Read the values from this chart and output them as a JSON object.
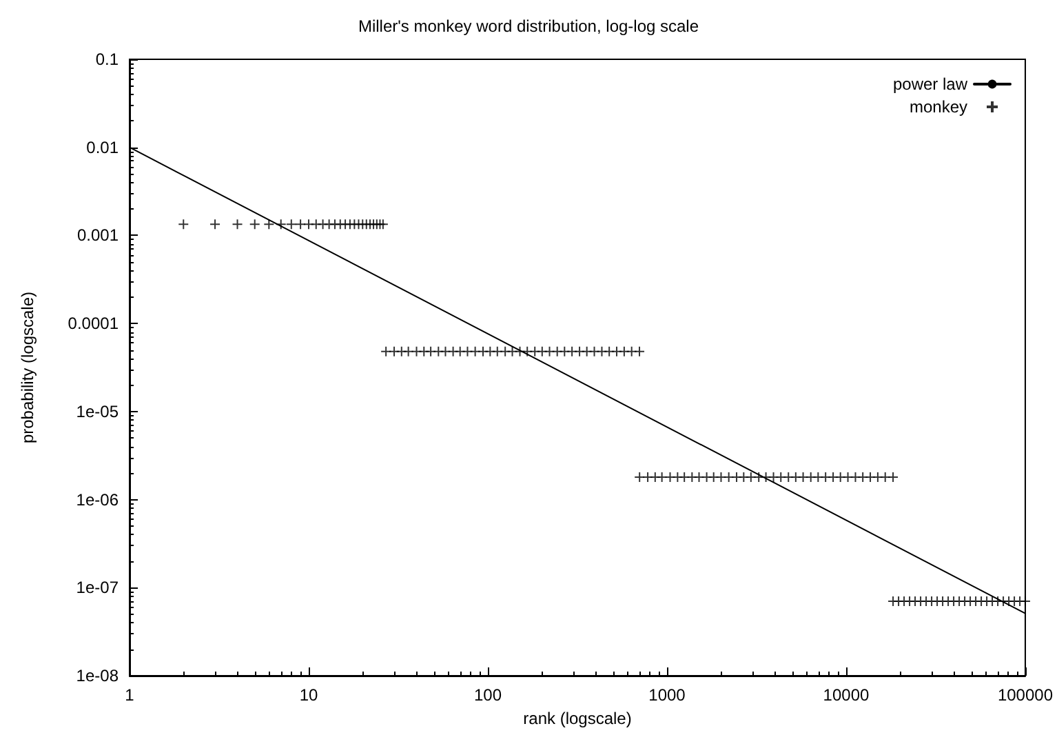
{
  "chart_data": {
    "type": "scatter",
    "title": "Miller's monkey word distribution, log-log scale",
    "xlabel": "rank (logscale)",
    "ylabel": "probability (logscale)",
    "log": "xy",
    "grid": false,
    "legend": "top right",
    "marker": "cross",
    "xlim": [
      1,
      100000
    ],
    "xticks": [
      1,
      10,
      100,
      1000,
      10000,
      100000
    ],
    "ylim": [
      1e-08,
      0.1
    ],
    "yticks": [
      0.1,
      0.01,
      0.001,
      0.0001,
      {
        "value": 1e-05,
        "label": "1e-05"
      },
      {
        "value": 1e-06,
        "label": "1e-06"
      },
      {
        "value": 1e-07,
        "label": "1e-07"
      },
      {
        "value": 1e-08,
        "label": "1e-08"
      }
    ],
    "series": [
      {
        "name": "power law",
        "type": "line",
        "marker": "none",
        "line_style": "solid",
        "color": "#000000",
        "x": [
          1,
          100000
        ],
        "values": [
          0.01,
          5.1e-08
        ]
      },
      {
        "name": "monkey",
        "color": "#000000",
        "x": [
          2,
          3,
          4,
          5,
          6,
          7,
          8,
          9,
          10,
          11,
          12,
          13,
          14,
          15,
          16,
          17,
          18,
          19,
          20,
          21,
          22,
          23,
          24,
          25,
          26,
          27,
          30,
          33,
          36,
          40,
          44,
          48,
          53,
          58,
          64,
          70,
          77,
          85,
          94,
          103,
          113,
          125,
          137,
          151,
          166,
          183,
          201,
          221,
          244,
          268,
          295,
          325,
          357,
          393,
          433,
          476,
          524,
          577,
          635,
          702,
          703,
          781,
          859,
          937,
          1041,
          1146,
          1250,
          1380,
          1510,
          1666,
          1822,
          2004,
          2213,
          2447,
          2681,
          2942,
          3254,
          3567,
          3931,
          4322,
          4764,
          5233,
          5754,
          6352,
          6977,
          7680,
          8461,
          9294,
          10231,
          11272,
          12392,
          13642,
          15021,
          16531,
          18278,
          18279,
          19621,
          21062,
          22608,
          24268,
          26050,
          27963,
          30016,
          32220,
          34586,
          37125,
          39851,
          42777,
          45918,
          49289,
          52908,
          56793,
          60963,
          65439,
          70244,
          75401,
          80938,
          86880,
          93259,
          100000
        ],
        "values": [
          0.00134,
          0.00134,
          0.00134,
          0.00134,
          0.00134,
          0.00134,
          0.00134,
          0.00134,
          0.00134,
          0.00134,
          0.00134,
          0.00134,
          0.00134,
          0.00134,
          0.00134,
          0.00134,
          0.00134,
          0.00134,
          0.00134,
          0.00134,
          0.00134,
          0.00134,
          0.00134,
          0.00134,
          0.00134,
          4.8e-05,
          4.8e-05,
          4.8e-05,
          4.8e-05,
          4.8e-05,
          4.8e-05,
          4.8e-05,
          4.8e-05,
          4.8e-05,
          4.8e-05,
          4.8e-05,
          4.8e-05,
          4.8e-05,
          4.8e-05,
          4.8e-05,
          4.8e-05,
          4.8e-05,
          4.8e-05,
          4.8e-05,
          4.8e-05,
          4.8e-05,
          4.8e-05,
          4.8e-05,
          4.8e-05,
          4.8e-05,
          4.8e-05,
          4.8e-05,
          4.8e-05,
          4.8e-05,
          4.8e-05,
          4.8e-05,
          4.8e-05,
          4.8e-05,
          4.8e-05,
          4.8e-05,
          1.8e-06,
          1.8e-06,
          1.8e-06,
          1.8e-06,
          1.8e-06,
          1.8e-06,
          1.8e-06,
          1.8e-06,
          1.8e-06,
          1.8e-06,
          1.8e-06,
          1.8e-06,
          1.8e-06,
          1.8e-06,
          1.8e-06,
          1.8e-06,
          1.8e-06,
          1.8e-06,
          1.8e-06,
          1.8e-06,
          1.8e-06,
          1.8e-06,
          1.8e-06,
          1.8e-06,
          1.8e-06,
          1.8e-06,
          1.8e-06,
          1.8e-06,
          1.8e-06,
          1.8e-06,
          1.8e-06,
          1.8e-06,
          1.8e-06,
          1.8e-06,
          1.8e-06,
          7e-08,
          7e-08,
          7e-08,
          7e-08,
          7e-08,
          7e-08,
          7e-08,
          7e-08,
          7e-08,
          7e-08,
          7e-08,
          7e-08,
          7e-08,
          7e-08,
          7e-08,
          7e-08,
          7e-08,
          7e-08,
          7e-08,
          7e-08,
          7e-08,
          7e-08,
          7e-08,
          7e-08,
          7e-08
        ]
      }
    ]
  }
}
